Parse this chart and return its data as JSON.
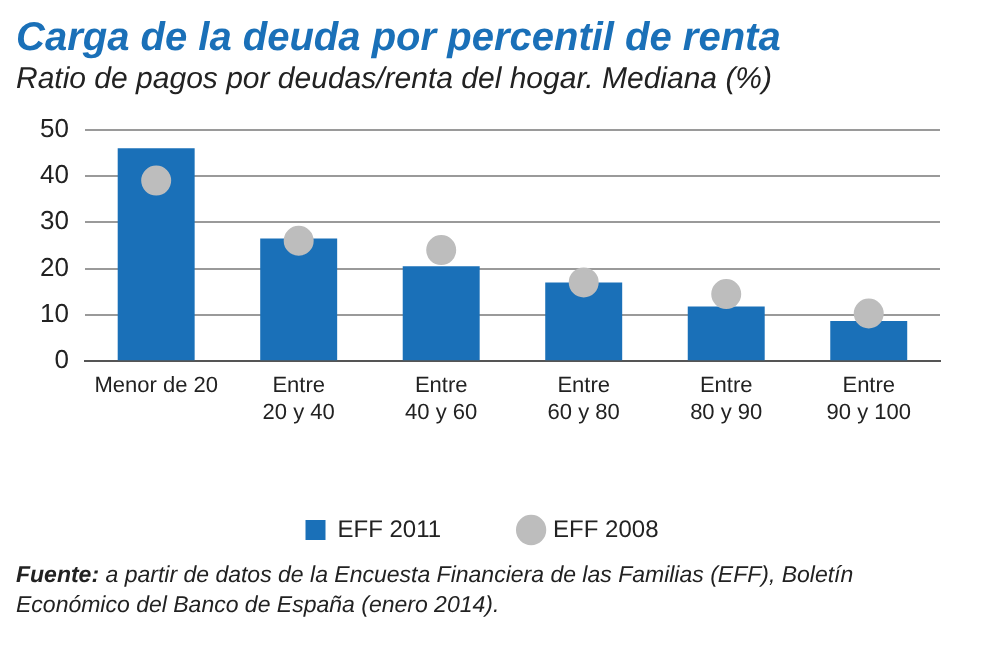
{
  "chart_data": {
    "type": "bar",
    "title": "Carga de la deuda por percentil de renta",
    "subtitle": "Ratio de pagos por deudas/renta del hogar. Mediana (%)",
    "categories": [
      "Menor de 20",
      "Entre\n20 y 40",
      "Entre\n40 y 60",
      "Entre\n60 y 80",
      "Entre\n80 y 90",
      "Entre\n90 y 100"
    ],
    "series": [
      {
        "name": "EFF 2011",
        "color": "#1a70b8",
        "values": [
          46,
          26.5,
          20.5,
          17,
          11.8,
          8.7
        ]
      },
      {
        "name": "EFF 2008",
        "type": "scatter",
        "color": "#bdbdbd",
        "x": [
          "Menor de 20",
          "Entre\n20 y 40",
          "Entre\n40 y 60",
          "Entre\n60 y 80",
          "Entre\n80 y 90",
          "Entre\n90 y 100"
        ],
        "values": [
          39,
          26,
          24,
          17,
          14.5,
          10.3
        ]
      }
    ],
    "ylim": [
      0,
      50
    ],
    "yticks": [
      0,
      10,
      20,
      30,
      40,
      50
    ],
    "grid": "y",
    "legend": "bottom",
    "marker": "circle",
    "annotations": [
      "Fuente: a partir de datos de la Encuesta Financiera de las Familias (EFF), Boletín Económico del Banco de España (enero 2014)."
    ]
  }
}
